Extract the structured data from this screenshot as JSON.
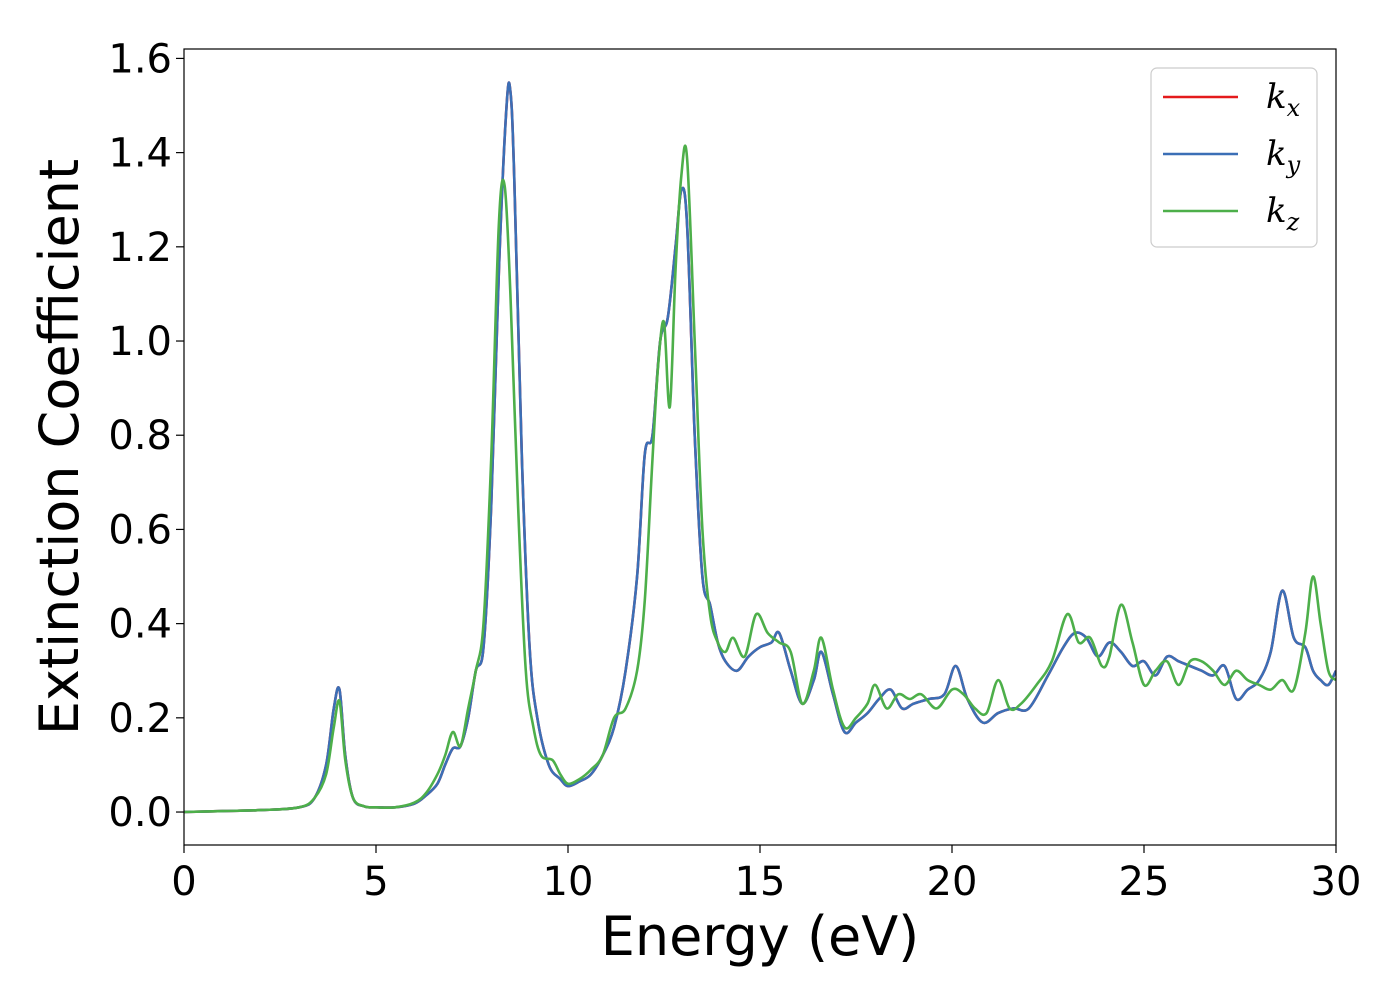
{
  "chart_data": {
    "type": "line",
    "xlabel": "Energy (eV)",
    "ylabel": "Extinction Coefficient",
    "xlim": [
      0,
      30
    ],
    "ylim": [
      -0.07,
      1.62
    ],
    "xticks": [
      "0",
      "5",
      "10",
      "15",
      "20",
      "25",
      "30"
    ],
    "yticks": [
      "0.0",
      "0.2",
      "0.4",
      "0.6",
      "0.8",
      "1.0",
      "1.2",
      "1.4",
      "1.6"
    ],
    "grid": false,
    "legend_position": "top-right",
    "series": [
      {
        "name": "kx",
        "legend_main": "k",
        "legend_sub": "x",
        "color": "#e41a1c",
        "x": [
          0,
          1,
          2,
          3,
          3.4,
          3.7,
          3.9,
          4.05,
          4.2,
          4.4,
          4.7,
          5,
          5.5,
          6,
          6.3,
          6.6,
          6.8,
          7.0,
          7.2,
          7.4,
          7.6,
          7.8,
          8.0,
          8.2,
          8.4,
          8.5,
          8.6,
          8.8,
          9.0,
          9.2,
          9.5,
          9.8,
          10.0,
          10.3,
          10.6,
          10.9,
          11.2,
          11.5,
          11.8,
          12.0,
          12.2,
          12.4,
          12.6,
          12.8,
          12.95,
          13.1,
          13.3,
          13.5,
          13.7,
          13.9,
          14.1,
          14.4,
          14.7,
          15.0,
          15.3,
          15.5,
          15.8,
          16.1,
          16.4,
          16.6,
          16.9,
          17.2,
          17.5,
          17.8,
          18.1,
          18.4,
          18.7,
          19.0,
          19.4,
          19.8,
          20.1,
          20.4,
          20.8,
          21.2,
          21.6,
          22.0,
          22.5,
          22.9,
          23.2,
          23.5,
          23.8,
          24.1,
          24.4,
          24.7,
          25.0,
          25.3,
          25.6,
          25.9,
          26.2,
          26.5,
          26.8,
          27.1,
          27.4,
          27.7,
          28.0,
          28.3,
          28.6,
          28.9,
          29.2,
          29.4,
          29.6,
          29.8,
          30.0
        ],
        "y": [
          0,
          0.002,
          0.004,
          0.01,
          0.03,
          0.1,
          0.22,
          0.26,
          0.12,
          0.03,
          0.012,
          0.01,
          0.01,
          0.018,
          0.035,
          0.06,
          0.1,
          0.135,
          0.14,
          0.2,
          0.3,
          0.35,
          0.65,
          1.15,
          1.5,
          1.53,
          1.35,
          0.75,
          0.35,
          0.2,
          0.1,
          0.07,
          0.055,
          0.065,
          0.08,
          0.12,
          0.18,
          0.3,
          0.5,
          0.76,
          0.8,
          1.0,
          1.05,
          1.2,
          1.32,
          1.25,
          0.8,
          0.5,
          0.44,
          0.36,
          0.32,
          0.3,
          0.33,
          0.35,
          0.36,
          0.38,
          0.3,
          0.23,
          0.28,
          0.34,
          0.25,
          0.17,
          0.19,
          0.21,
          0.24,
          0.26,
          0.22,
          0.23,
          0.24,
          0.25,
          0.31,
          0.24,
          0.19,
          0.21,
          0.22,
          0.22,
          0.29,
          0.35,
          0.38,
          0.37,
          0.33,
          0.36,
          0.34,
          0.31,
          0.32,
          0.29,
          0.33,
          0.32,
          0.31,
          0.3,
          0.29,
          0.31,
          0.24,
          0.26,
          0.28,
          0.34,
          0.47,
          0.37,
          0.35,
          0.3,
          0.28,
          0.27,
          0.3
        ]
      },
      {
        "name": "ky",
        "legend_main": "k",
        "legend_sub": "y",
        "color": "#3b6fb6",
        "x": [
          0,
          1,
          2,
          3,
          3.4,
          3.7,
          3.9,
          4.05,
          4.2,
          4.4,
          4.7,
          5,
          5.5,
          6,
          6.3,
          6.6,
          6.8,
          7.0,
          7.2,
          7.4,
          7.6,
          7.8,
          8.0,
          8.2,
          8.4,
          8.5,
          8.6,
          8.8,
          9.0,
          9.2,
          9.5,
          9.8,
          10.0,
          10.3,
          10.6,
          10.9,
          11.2,
          11.5,
          11.8,
          12.0,
          12.2,
          12.4,
          12.6,
          12.8,
          12.95,
          13.1,
          13.3,
          13.5,
          13.7,
          13.9,
          14.1,
          14.4,
          14.7,
          15.0,
          15.3,
          15.5,
          15.8,
          16.1,
          16.4,
          16.6,
          16.9,
          17.2,
          17.5,
          17.8,
          18.1,
          18.4,
          18.7,
          19.0,
          19.4,
          19.8,
          20.1,
          20.4,
          20.8,
          21.2,
          21.6,
          22.0,
          22.5,
          22.9,
          23.2,
          23.5,
          23.8,
          24.1,
          24.4,
          24.7,
          25.0,
          25.3,
          25.6,
          25.9,
          26.2,
          26.5,
          26.8,
          27.1,
          27.4,
          27.7,
          28.0,
          28.3,
          28.6,
          28.9,
          29.2,
          29.4,
          29.6,
          29.8,
          30.0
        ],
        "y": [
          0,
          0.002,
          0.004,
          0.01,
          0.03,
          0.1,
          0.22,
          0.26,
          0.12,
          0.03,
          0.012,
          0.01,
          0.01,
          0.018,
          0.035,
          0.06,
          0.1,
          0.135,
          0.14,
          0.2,
          0.3,
          0.35,
          0.65,
          1.15,
          1.5,
          1.53,
          1.35,
          0.75,
          0.35,
          0.2,
          0.1,
          0.07,
          0.055,
          0.065,
          0.08,
          0.12,
          0.18,
          0.3,
          0.5,
          0.76,
          0.8,
          1.0,
          1.05,
          1.2,
          1.32,
          1.25,
          0.8,
          0.5,
          0.44,
          0.36,
          0.32,
          0.3,
          0.33,
          0.35,
          0.36,
          0.38,
          0.3,
          0.23,
          0.28,
          0.34,
          0.25,
          0.17,
          0.19,
          0.21,
          0.24,
          0.26,
          0.22,
          0.23,
          0.24,
          0.25,
          0.31,
          0.24,
          0.19,
          0.21,
          0.22,
          0.22,
          0.29,
          0.35,
          0.38,
          0.37,
          0.33,
          0.36,
          0.34,
          0.31,
          0.32,
          0.29,
          0.33,
          0.32,
          0.31,
          0.3,
          0.29,
          0.31,
          0.24,
          0.26,
          0.28,
          0.34,
          0.47,
          0.37,
          0.35,
          0.3,
          0.28,
          0.27,
          0.3
        ]
      },
      {
        "name": "kz",
        "legend_main": "k",
        "legend_sub": "z",
        "color": "#4daf4a",
        "x": [
          0,
          1,
          2,
          3,
          3.4,
          3.7,
          3.9,
          4.05,
          4.2,
          4.4,
          4.7,
          5,
          5.5,
          6,
          6.3,
          6.6,
          6.8,
          7.0,
          7.2,
          7.4,
          7.6,
          7.8,
          8.0,
          8.2,
          8.35,
          8.5,
          8.7,
          8.9,
          9.1,
          9.3,
          9.6,
          9.8,
          10.0,
          10.3,
          10.6,
          10.9,
          11.2,
          11.5,
          11.8,
          12.0,
          12.2,
          12.35,
          12.5,
          12.65,
          12.8,
          12.95,
          13.1,
          13.3,
          13.5,
          13.7,
          13.9,
          14.1,
          14.3,
          14.6,
          14.9,
          15.2,
          15.5,
          15.8,
          16.1,
          16.4,
          16.6,
          16.9,
          17.2,
          17.5,
          17.8,
          18.0,
          18.3,
          18.6,
          18.9,
          19.2,
          19.6,
          20.0,
          20.3,
          20.6,
          20.9,
          21.2,
          21.5,
          21.8,
          22.2,
          22.6,
          23.0,
          23.3,
          23.6,
          23.9,
          24.1,
          24.4,
          24.7,
          25.0,
          25.3,
          25.6,
          25.9,
          26.2,
          26.5,
          26.8,
          27.1,
          27.4,
          27.7,
          28.0,
          28.3,
          28.6,
          28.9,
          29.2,
          29.4,
          29.6,
          29.8,
          30.0
        ],
        "y": [
          0,
          0.002,
          0.004,
          0.01,
          0.03,
          0.08,
          0.18,
          0.235,
          0.11,
          0.03,
          0.012,
          0.01,
          0.01,
          0.02,
          0.04,
          0.08,
          0.12,
          0.17,
          0.14,
          0.22,
          0.3,
          0.4,
          0.75,
          1.25,
          1.33,
          1.1,
          0.65,
          0.3,
          0.18,
          0.12,
          0.11,
          0.08,
          0.06,
          0.07,
          0.09,
          0.12,
          0.2,
          0.22,
          0.3,
          0.45,
          0.75,
          0.95,
          1.04,
          0.86,
          1.15,
          1.35,
          1.39,
          1.0,
          0.6,
          0.42,
          0.36,
          0.34,
          0.37,
          0.33,
          0.42,
          0.38,
          0.36,
          0.34,
          0.23,
          0.3,
          0.37,
          0.26,
          0.18,
          0.2,
          0.23,
          0.27,
          0.22,
          0.25,
          0.24,
          0.25,
          0.22,
          0.26,
          0.25,
          0.22,
          0.21,
          0.28,
          0.22,
          0.23,
          0.27,
          0.32,
          0.42,
          0.36,
          0.37,
          0.31,
          0.33,
          0.44,
          0.36,
          0.27,
          0.3,
          0.32,
          0.27,
          0.32,
          0.32,
          0.3,
          0.27,
          0.3,
          0.28,
          0.27,
          0.26,
          0.28,
          0.26,
          0.38,
          0.5,
          0.4,
          0.3,
          0.28
        ]
      }
    ]
  }
}
